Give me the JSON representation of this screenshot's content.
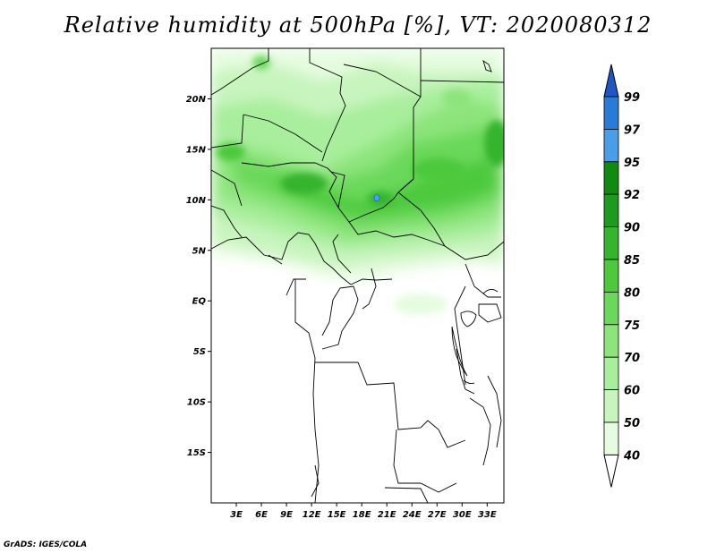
{
  "title": "Relative humidity at 500hPa [%], VT: 2020080312",
  "credit": "GrADS: IGES/COLA",
  "map": {
    "lon_range": [
      0,
      35
    ],
    "lat_range": [
      -20,
      25
    ],
    "lat_ticks": [
      {
        "value": 20,
        "label": "20N"
      },
      {
        "value": 15,
        "label": "15N"
      },
      {
        "value": 10,
        "label": "10N"
      },
      {
        "value": 5,
        "label": "5N"
      },
      {
        "value": 0,
        "label": "EQ"
      },
      {
        "value": -5,
        "label": "5S"
      },
      {
        "value": -10,
        "label": "10S"
      },
      {
        "value": -15,
        "label": "15S"
      }
    ],
    "lon_ticks": [
      {
        "value": 3,
        "label": "3E"
      },
      {
        "value": 6,
        "label": "6E"
      },
      {
        "value": 9,
        "label": "9E"
      },
      {
        "value": 12,
        "label": "12E"
      },
      {
        "value": 15,
        "label": "15E"
      },
      {
        "value": 18,
        "label": "18E"
      },
      {
        "value": 21,
        "label": "21E"
      },
      {
        "value": 24,
        "label": "24E"
      },
      {
        "value": 27,
        "label": "27E"
      },
      {
        "value": 30,
        "label": "30E"
      },
      {
        "value": 33,
        "label": "33E"
      }
    ]
  },
  "colorbar": {
    "levels": [
      "40",
      "50",
      "60",
      "70",
      "75",
      "80",
      "85",
      "90",
      "92",
      "95",
      "97",
      "99"
    ],
    "colors": [
      "#ffffff",
      "#e6fce0",
      "#c8f4be",
      "#a8ee9c",
      "#8ce47a",
      "#6ad85a",
      "#4ec93e",
      "#36b42e",
      "#1e9a1e",
      "#118a11",
      "#4a9ee8",
      "#2a7ad8",
      "#1f56c4"
    ]
  }
}
